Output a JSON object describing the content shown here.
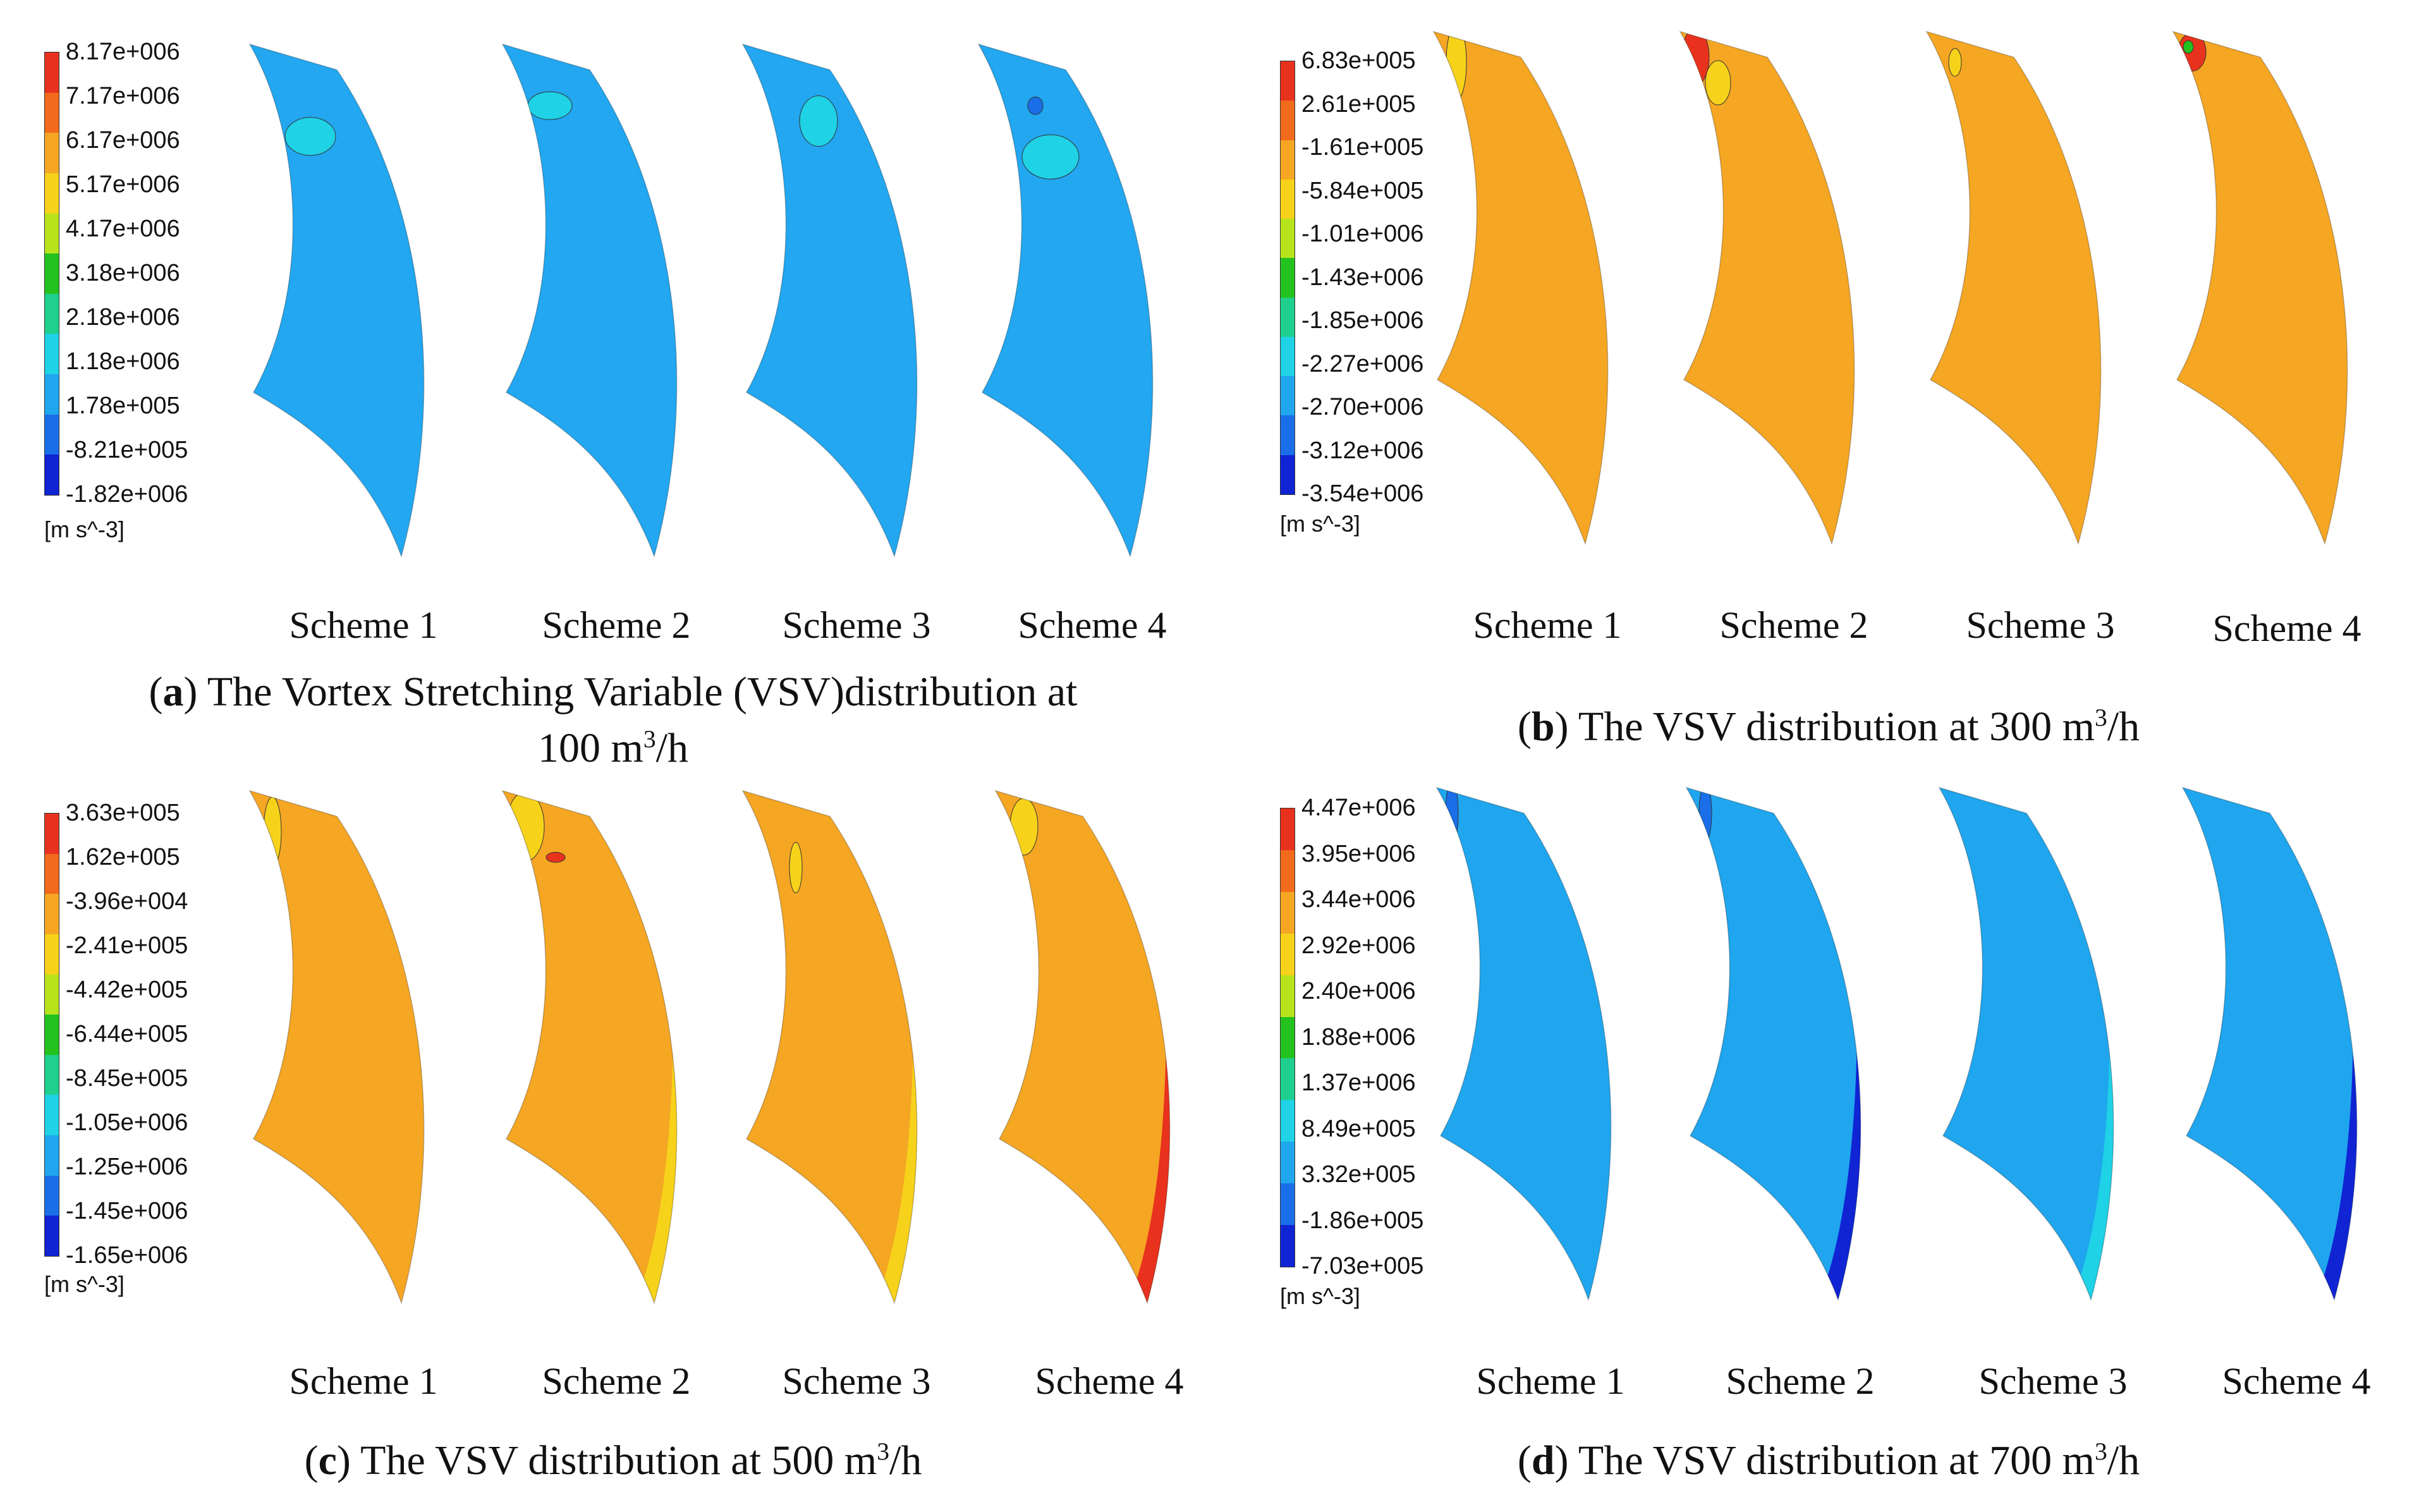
{
  "figure": {
    "panels": [
      {
        "id": "a",
        "letter": "a",
        "caption_line1": "The Vortex Stretching Variable (VSV)distribution at",
        "caption_line2": "100 m",
        "caption_sup": "3",
        "caption_tail": "/h",
        "legend": {
          "ticks": [
            "8.17e+006",
            "7.17e+006",
            "6.17e+006",
            "5.17e+006",
            "4.17e+006",
            "3.18e+006",
            "2.18e+006",
            "1.18e+006",
            "1.78e+005",
            "-8.21e+005",
            "-1.82e+006"
          ],
          "unit": "[m s^-3]"
        },
        "base_color": "#22a7f0",
        "schemes": [
          "Scheme 1",
          "Scheme 2",
          "Scheme 3",
          "Scheme 4"
        ]
      },
      {
        "id": "b",
        "letter": "b",
        "caption_line1": "The VSV distribution at 300 m",
        "caption_sup": "3",
        "caption_tail": "/h",
        "legend": {
          "ticks": [
            "6.83e+005",
            "2.61e+005",
            "-1.61e+005",
            "-5.84e+005",
            "-1.01e+006",
            "-1.43e+006",
            "-1.85e+006",
            "-2.27e+006",
            "-2.70e+006",
            "-3.12e+006",
            "-3.54e+006"
          ],
          "unit": "[m s^-3]"
        },
        "base_color": "#f5a623",
        "schemes": [
          "Scheme 1",
          "Scheme 2",
          "Scheme 3",
          "Scheme 4"
        ]
      },
      {
        "id": "c",
        "letter": "c",
        "caption_line1": "The VSV distribution at 500 m",
        "caption_sup": "3",
        "caption_tail": "/h",
        "legend": {
          "ticks": [
            "3.63e+005",
            "1.62e+005",
            "-3.96e+004",
            "-2.41e+005",
            "-4.42e+005",
            "-6.44e+005",
            "-8.45e+005",
            "-1.05e+006",
            "-1.25e+006",
            "-1.45e+006",
            "-1.65e+006"
          ],
          "unit": "[m s^-3]"
        },
        "base_color": "#f5a623",
        "schemes": [
          "Scheme 1",
          "Scheme 2",
          "Scheme 3",
          "Scheme 4"
        ]
      },
      {
        "id": "d",
        "letter": "d",
        "caption_line1": "The VSV distribution at 700 m",
        "caption_sup": "3",
        "caption_tail": "/h",
        "legend": {
          "ticks": [
            "4.47e+006",
            "3.95e+006",
            "3.44e+006",
            "2.92e+006",
            "2.40e+006",
            "1.88e+006",
            "1.37e+006",
            "8.49e+005",
            "3.32e+005",
            "-1.86e+005",
            "-7.03e+005"
          ],
          "unit": "[m s^-3]"
        },
        "base_color": "#1fa6ee",
        "schemes": [
          "Scheme 1",
          "Scheme 2",
          "Scheme 3",
          "Scheme 4"
        ]
      }
    ],
    "colormap": [
      "#e8321e",
      "#f26a1b",
      "#f5a623",
      "#f7d21a",
      "#b7e31c",
      "#23c21f",
      "#1fcf8e",
      "#1fd2e6",
      "#1fa6ee",
      "#1a6ee8",
      "#1024d4"
    ]
  }
}
